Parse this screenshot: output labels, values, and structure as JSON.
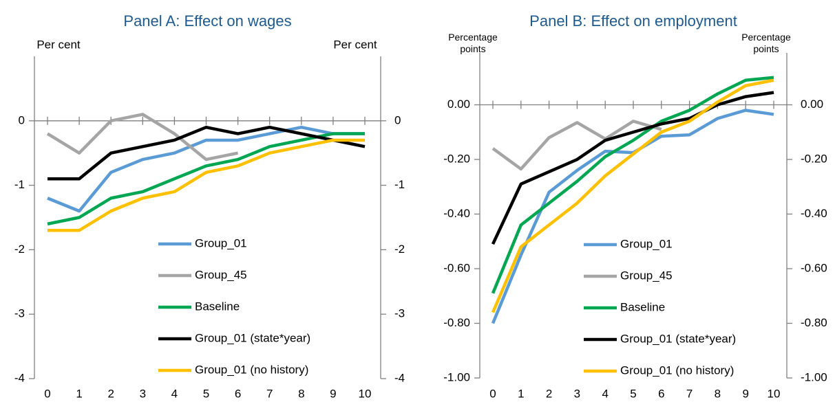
{
  "chart_data": [
    {
      "type": "line",
      "title": "Panel A: Effect on wages",
      "ylabel": "Per cent",
      "ylabel_right": "Per cent",
      "categories": [
        "0",
        "1",
        "2",
        "3",
        "4",
        "5",
        "6",
        "7",
        "8",
        "9",
        "10"
      ],
      "ylim": [
        -4,
        1
      ],
      "yticks": [
        -4,
        -3,
        -2,
        -1,
        0
      ],
      "series": [
        {
          "name": "Group_01",
          "color": "#5b9bd5",
          "values": [
            -1.2,
            -1.4,
            -0.8,
            -0.6,
            -0.5,
            -0.3,
            -0.3,
            -0.2,
            -0.1,
            -0.2,
            -0.2
          ]
        },
        {
          "name": "Group_45",
          "color": "#a5a5a5",
          "values": [
            -0.2,
            -0.5,
            0,
            0.1,
            -0.2,
            -0.6,
            -0.5,
            null,
            null,
            null,
            null
          ]
        },
        {
          "name": "Baseline",
          "color": "#00a651",
          "values": [
            -1.6,
            -1.5,
            -1.2,
            -1.1,
            -0.9,
            -0.7,
            -0.6,
            -0.4,
            -0.3,
            -0.2,
            -0.2
          ]
        },
        {
          "name": "Group_01 (state*year)",
          "color": "#000000",
          "values": [
            -0.9,
            -0.9,
            -0.5,
            -0.4,
            -0.3,
            -0.1,
            -0.2,
            -0.1,
            -0.2,
            -0.3,
            -0.4
          ]
        },
        {
          "name": "Group_01 (no history)",
          "color": "#ffc000",
          "values": [
            -1.7,
            -1.7,
            -1.4,
            -1.2,
            -1.1,
            -0.8,
            -0.7,
            -0.5,
            -0.4,
            -0.3,
            -0.3
          ]
        }
      ]
    },
    {
      "type": "line",
      "title": "Panel B: Effect on employment",
      "ylabel": "Percentage points",
      "ylabel_right": "Percentage points",
      "categories": [
        "0",
        "1",
        "2",
        "3",
        "4",
        "5",
        "6",
        "7",
        "8",
        "9",
        "10"
      ],
      "ylim": [
        -1,
        0.19
      ],
      "yticks": [
        {
          "value": -1,
          "label": "-1.00"
        },
        {
          "value": -0.8,
          "label": "-0.80"
        },
        {
          "value": -0.6,
          "label": "-0.60"
        },
        {
          "value": -0.4,
          "label": "-0.40"
        },
        {
          "value": -0.2,
          "label": "-0.20"
        },
        {
          "value": 0,
          "label": "0.00"
        }
      ],
      "series": [
        {
          "name": "Group_01",
          "color": "#5b9bd5",
          "values": [
            -0.8,
            -0.55,
            -0.32,
            -0.24,
            -0.17,
            -0.175,
            -0.115,
            -0.11,
            -0.05,
            -0.02,
            -0.035
          ]
        },
        {
          "name": "Group_45",
          "color": "#a5a5a5",
          "values": [
            -0.16,
            -0.235,
            -0.12,
            -0.065,
            -0.125,
            -0.06,
            -0.09,
            null,
            null,
            null,
            null
          ]
        },
        {
          "name": "Baseline",
          "color": "#00a651",
          "values": [
            -0.69,
            -0.44,
            -0.36,
            -0.28,
            -0.19,
            -0.13,
            -0.06,
            -0.02,
            0.04,
            0.09,
            0.1
          ]
        },
        {
          "name": "Group_01 (state*year)",
          "color": "#000000",
          "values": [
            -0.51,
            -0.29,
            -0.245,
            -0.2,
            -0.13,
            -0.1,
            -0.07,
            -0.05,
            0,
            0.03,
            0.045
          ]
        },
        {
          "name": "Group_01 (no history)",
          "color": "#ffc000",
          "values": [
            -0.76,
            -0.52,
            -0.44,
            -0.36,
            -0.26,
            -0.18,
            -0.1,
            -0.06,
            0.01,
            0.07,
            0.09
          ]
        }
      ]
    }
  ]
}
